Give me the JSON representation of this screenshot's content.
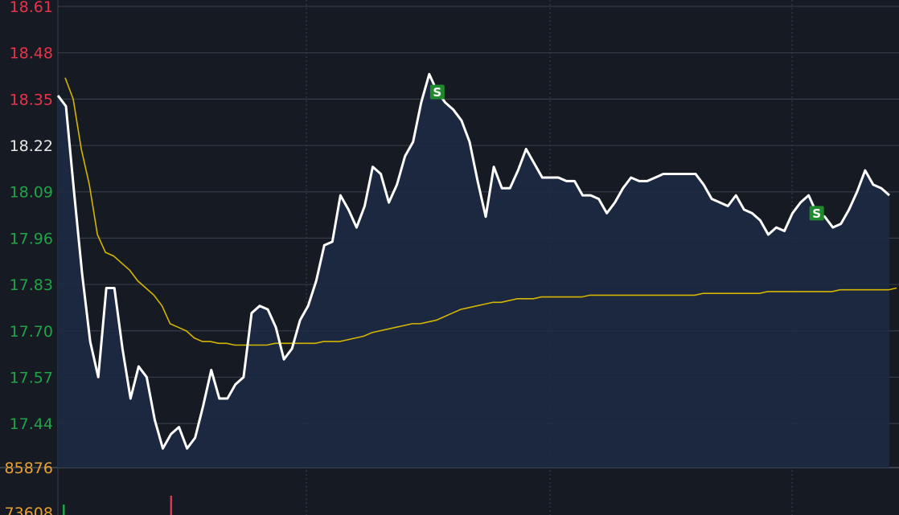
{
  "colors": {
    "background": "#161a22",
    "grid": "#353b47",
    "price_line": "#ffffff",
    "avg_line": "#d4b500",
    "area_fill": "#1d2a42",
    "up": "#e8334a",
    "down": "#1fa447",
    "neutral": "#e8e8e8",
    "volume_label": "#e8a030",
    "marker_bg": "#1f8a2c"
  },
  "chart_data": {
    "type": "line",
    "y_ticks": [
      {
        "value": "18.61",
        "tone": "up"
      },
      {
        "value": "18.48",
        "tone": "up"
      },
      {
        "value": "18.35",
        "tone": "up"
      },
      {
        "value": "18.22",
        "tone": "neutral"
      },
      {
        "value": "18.09",
        "tone": "down"
      },
      {
        "value": "17.96",
        "tone": "down"
      },
      {
        "value": "17.83",
        "tone": "down"
      },
      {
        "value": "17.70",
        "tone": "down"
      },
      {
        "value": "17.57",
        "tone": "down"
      },
      {
        "value": "17.44",
        "tone": "down"
      }
    ],
    "ylim": [
      17.31,
      18.61
    ],
    "grid": true,
    "series": [
      {
        "key": "price",
        "values": [
          18.36,
          18.33,
          18.09,
          17.86,
          17.67,
          17.57,
          17.82,
          17.82,
          17.65,
          17.51,
          17.6,
          17.57,
          17.45,
          17.37,
          17.41,
          17.43,
          17.37,
          17.4,
          17.49,
          17.59,
          17.51,
          17.51,
          17.55,
          17.57,
          17.75,
          17.77,
          17.76,
          17.71,
          17.62,
          17.65,
          17.73,
          17.77,
          17.84,
          17.94,
          17.95,
          18.08,
          18.04,
          17.99,
          18.05,
          18.16,
          18.14,
          18.06,
          18.11,
          18.19,
          18.23,
          18.34,
          18.42,
          18.37,
          18.34,
          18.32,
          18.29,
          18.23,
          18.12,
          18.02,
          18.16,
          18.1,
          18.1,
          18.15,
          18.21,
          18.17,
          18.13,
          18.13,
          18.13,
          18.12,
          18.12,
          18.08,
          18.08,
          18.07,
          18.03,
          18.06,
          18.1,
          18.13,
          18.12,
          18.12,
          18.13,
          18.14,
          18.14,
          18.14,
          18.14,
          18.14,
          18.11,
          18.07,
          18.06,
          18.05,
          18.08,
          18.04,
          18.03,
          18.01,
          17.97,
          17.99,
          17.98,
          18.03,
          18.06,
          18.08,
          18.03,
          18.02,
          17.99,
          18.0,
          18.04,
          18.09,
          18.15,
          18.11,
          18.1,
          18.08
        ]
      },
      {
        "key": "average",
        "values": [
          18.41,
          18.35,
          18.21,
          18.11,
          17.97,
          17.92,
          17.91,
          17.89,
          17.87,
          17.84,
          17.82,
          17.8,
          17.77,
          17.72,
          17.71,
          17.7,
          17.68,
          17.67,
          17.67,
          17.665,
          17.665,
          17.66,
          17.66,
          17.66,
          17.66,
          17.66,
          17.665,
          17.665,
          17.665,
          17.665,
          17.665,
          17.665,
          17.67,
          17.67,
          17.67,
          17.675,
          17.68,
          17.685,
          17.695,
          17.7,
          17.705,
          17.71,
          17.715,
          17.72,
          17.72,
          17.725,
          17.73,
          17.74,
          17.75,
          17.76,
          17.765,
          17.77,
          17.775,
          17.78,
          17.78,
          17.785,
          17.79,
          17.79,
          17.79,
          17.795,
          17.795,
          17.795,
          17.795,
          17.795,
          17.795,
          17.8,
          17.8,
          17.8,
          17.8,
          17.8,
          17.8,
          17.8,
          17.8,
          17.8,
          17.8,
          17.8,
          17.8,
          17.8,
          17.8,
          17.805,
          17.805,
          17.805,
          17.805,
          17.805,
          17.805,
          17.805,
          17.805,
          17.81,
          17.81,
          17.81,
          17.81,
          17.81,
          17.81,
          17.81,
          17.81,
          17.81,
          17.815,
          17.815,
          17.815,
          17.815,
          17.815,
          17.815,
          17.815,
          17.82
        ]
      }
    ],
    "markers": [
      {
        "label": "S",
        "index": 47
      },
      {
        "label": "S",
        "index": 94
      }
    ],
    "volume": {
      "labels": [
        "85876",
        "73608"
      ],
      "bars": [
        {
          "index": 1,
          "tone": "down"
        },
        {
          "index": 14,
          "tone": "up"
        }
      ]
    }
  }
}
